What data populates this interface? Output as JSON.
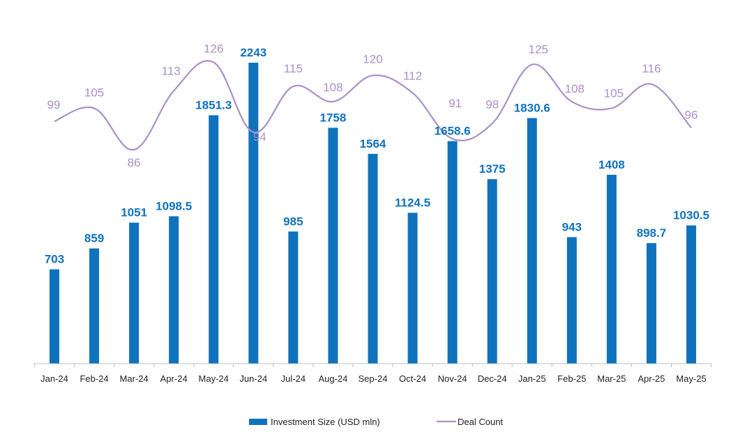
{
  "chart_data": {
    "type": "bar",
    "title": "",
    "xlabel": "",
    "ylabel": "",
    "categories": [
      "Jan-24",
      "Feb-24",
      "Mar-24",
      "Apr-24",
      "May-24",
      "Jun-24",
      "Jul-24",
      "Aug-24",
      "Sep-24",
      "Oct-24",
      "Nov-24",
      "Dec-24",
      "Jan-25",
      "Feb-25",
      "Mar-25",
      "Apr-25",
      "May-25"
    ],
    "series": [
      {
        "name": "Investment Size (USD mln)",
        "type": "bar",
        "color": "#0f72bd",
        "values": [
          703,
          859,
          1051,
          1098.5,
          1851.3,
          2243,
          985,
          1758,
          1564,
          1124.5,
          1658.6,
          1375,
          1830.6,
          943,
          1408,
          898.7,
          1030.5
        ],
        "labels": [
          "703",
          "859",
          "1051",
          "1098.5",
          "1851.3",
          "2243",
          "985",
          "1758",
          "1564",
          "1124.5",
          "1658.6",
          "1375",
          "1830.6",
          "943",
          "1408",
          "898.7",
          "1030.5"
        ]
      },
      {
        "name": "Deal Count",
        "type": "line",
        "smooth": true,
        "color": "#a990c9",
        "values": [
          99,
          105,
          86,
          113,
          126,
          94,
          115,
          108,
          120,
          112,
          91,
          98,
          125,
          108,
          105,
          116,
          96
        ],
        "labels": [
          "99",
          "105",
          "86",
          "113",
          "126",
          "94",
          "115",
          "108",
          "120",
          "112",
          "91",
          "98",
          "125",
          "108",
          "105",
          "116",
          "96"
        ]
      }
    ],
    "ylim_bar": [
      0,
      2400
    ],
    "ylim_line": [
      -100,
      140
    ],
    "grid": false,
    "legend": "bottom",
    "label_colors": {
      "bar": "#0f72bd",
      "line": "#a990c9"
    }
  }
}
